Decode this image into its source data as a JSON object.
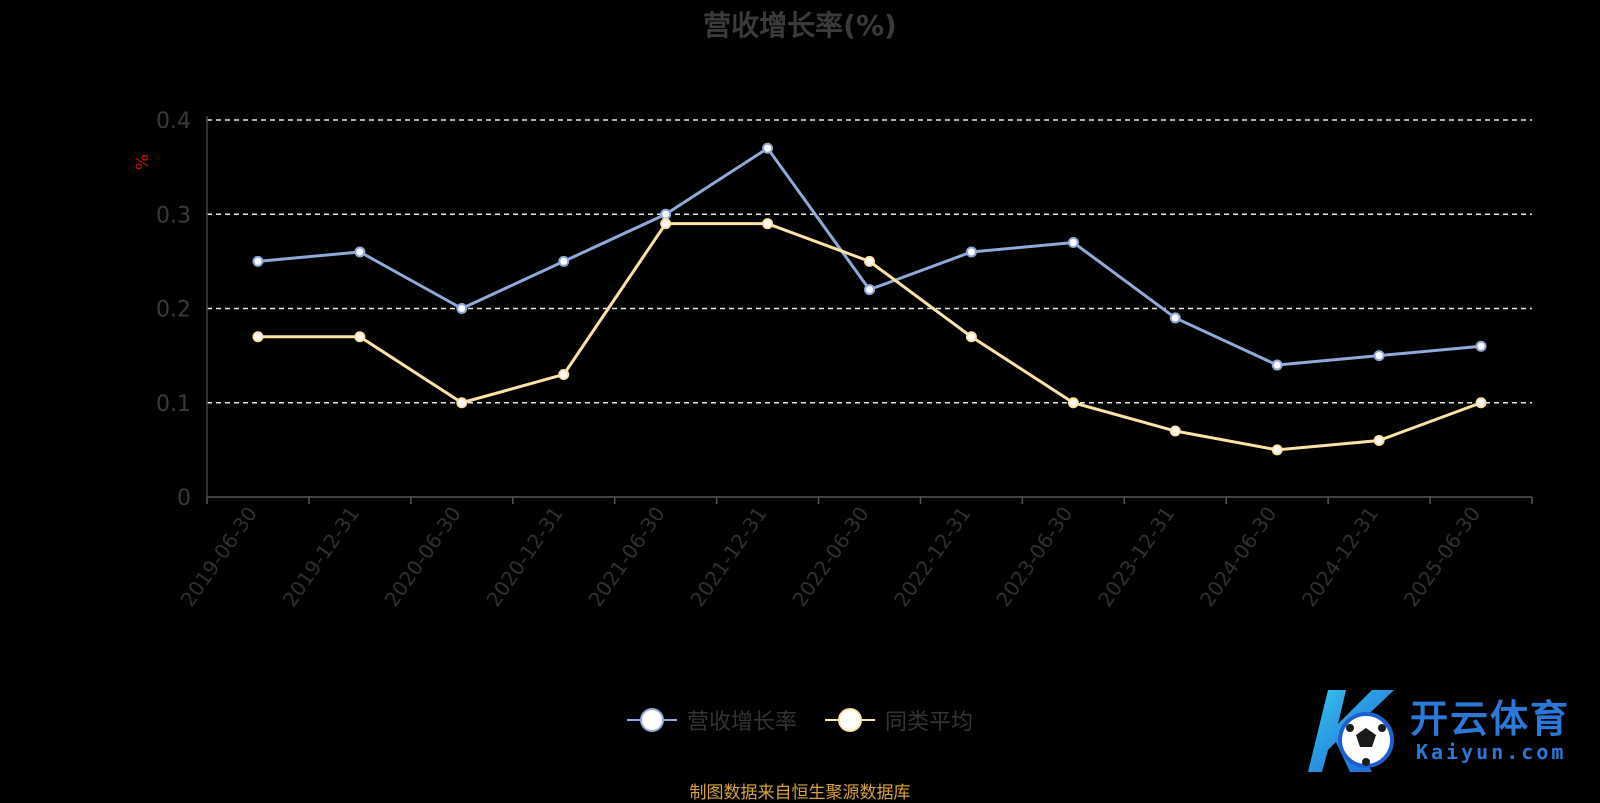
{
  "chart_data": {
    "type": "line",
    "title": "营收增长率(%)",
    "ylabel": "%",
    "xlabel": "",
    "ylim": [
      0,
      0.4
    ],
    "yticks": [
      "0",
      "0.1",
      "0.2",
      "0.3",
      "0.4"
    ],
    "grid": true,
    "legend_position": "bottom",
    "categories": [
      "2019-06-30",
      "2019-12-31",
      "2020-06-30",
      "2020-12-31",
      "2021-06-30",
      "2021-12-31",
      "2022-06-30",
      "2022-12-31",
      "2023-06-30",
      "2023-12-31",
      "2024-06-30",
      "2024-12-31",
      "2025-06-30"
    ],
    "series": [
      {
        "name": "营收增长率",
        "color": "#8fa9d8",
        "values": [
          0.25,
          0.26,
          0.2,
          0.25,
          0.3,
          0.37,
          0.22,
          0.26,
          0.27,
          0.19,
          0.14,
          0.15,
          0.16
        ]
      },
      {
        "name": "同类平均",
        "color": "#fce2a4",
        "values": [
          0.17,
          0.17,
          0.1,
          0.13,
          0.29,
          0.29,
          0.25,
          0.17,
          0.1,
          0.07,
          0.05,
          0.06,
          0.1
        ]
      }
    ]
  },
  "source_note": "制图数据来自恒生聚源数据库",
  "watermark": {
    "brand": "开云体育",
    "domain": "Kaiyun.com"
  }
}
